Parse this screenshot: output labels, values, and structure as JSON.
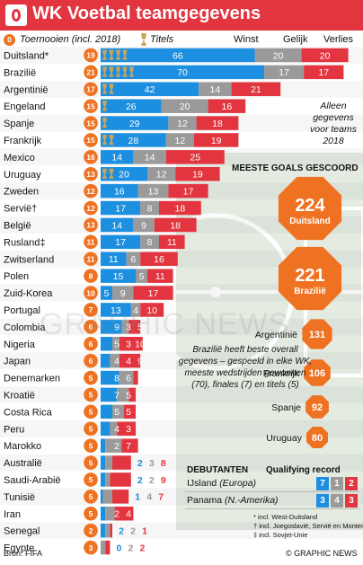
{
  "title": "WK Voetbal teamgegevens",
  "legend": {
    "tournaments_badge": "0",
    "tournaments": "Toernooien (incl. 2018)",
    "titles": "Titels",
    "wins": "Winst",
    "draws": "Gelijk",
    "losses": "Verlies"
  },
  "note_2018": "Alleen gegevens voor teams 2018",
  "goals_heading": "MEESTE GOALS GESCOORD",
  "goals": [
    {
      "value": "224",
      "team": "Duitsland"
    },
    {
      "value": "221",
      "team": "Brazilië"
    },
    {
      "value": "131",
      "team": "Argentinië"
    },
    {
      "value": "106",
      "team": "Frankrijk"
    },
    {
      "value": "92",
      "team": "Spanje"
    },
    {
      "value": "80",
      "team": "Uruguay"
    }
  ],
  "brazil_note": "Brazilië heeft beste overall gegevens – gespeeld in elke WK, meeste wedstrijden gewonnen (70), finales (7) en titels (5)",
  "debutants": {
    "heading": "DEBUTANTEN",
    "qualifying": "Qualifying record",
    "rows": [
      {
        "team": "IJsland",
        "region": "(Europa)",
        "w": "7",
        "d": "1",
        "l": "2"
      },
      {
        "team": "Panama",
        "region": "(N.-Amerika)",
        "w": "3",
        "d": "4",
        "l": "3"
      }
    ]
  },
  "footnotes": [
    "* incl. West-Duitsland",
    "† incl. Joegoslavië, Servië en Montenegro",
    "‡ incl. Sovjet-Unie"
  ],
  "watermark": "GRAPHIC NEWS",
  "source": "Bron: FIFA",
  "credit": "© GRAPHIC NEWS",
  "colors": {
    "wins": "#1c8fe0",
    "draws": "#9a9a9a",
    "losses": "#e23540",
    "badge": "#ef7222",
    "trophy": "#c9a45a",
    "title_bar": "#e23540"
  },
  "chart_data": {
    "type": "bar",
    "stacked": true,
    "orientation": "horizontal",
    "categories": [
      "Duitsland*",
      "Brazilië",
      "Argentinië",
      "Engeland",
      "Spanje",
      "Frankrijk",
      "Mexico",
      "Uruguay",
      "Zweden",
      "Servië†",
      "België",
      "Rusland‡",
      "Zwitserland",
      "Polen",
      "Zuid-Korea",
      "Portugal",
      "Colombia",
      "Nigeria",
      "Japan",
      "Denemarken",
      "Kroatië",
      "Costa Rica",
      "Peru",
      "Marokko",
      "Australië",
      "Saudi-Arabië",
      "Tunisië",
      "Iran",
      "Senegal",
      "Egypte"
    ],
    "tournaments": [
      19,
      21,
      17,
      15,
      15,
      15,
      16,
      13,
      12,
      12,
      13,
      11,
      11,
      8,
      10,
      7,
      6,
      6,
      6,
      5,
      5,
      5,
      5,
      5,
      5,
      5,
      5,
      5,
      2,
      3
    ],
    "titles": [
      4,
      5,
      2,
      1,
      1,
      2,
      0,
      2,
      0,
      0,
      0,
      0,
      0,
      0,
      0,
      0,
      0,
      0,
      0,
      0,
      0,
      0,
      0,
      0,
      0,
      0,
      0,
      0,
      0,
      0
    ],
    "series": [
      {
        "name": "Winst",
        "values": [
          66,
          70,
          42,
          26,
          29,
          28,
          14,
          20,
          16,
          17,
          14,
          17,
          11,
          15,
          5,
          13,
          9,
          5,
          4,
          8,
          7,
          5,
          4,
          2,
          2,
          2,
          1,
          2,
          2,
          0
        ]
      },
      {
        "name": "Gelijk",
        "values": [
          20,
          17,
          14,
          20,
          12,
          12,
          14,
          12,
          13,
          8,
          9,
          8,
          6,
          5,
          9,
          4,
          3,
          3,
          4,
          6,
          5,
          5,
          3,
          7,
          3,
          2,
          4,
          4,
          2,
          2
        ]
      },
      {
        "name": "Verlies",
        "values": [
          20,
          17,
          21,
          16,
          18,
          19,
          25,
          19,
          17,
          18,
          18,
          11,
          16,
          11,
          17,
          10,
          5,
          10,
          9,
          2,
          3,
          5,
          8,
          7,
          8,
          9,
          7,
          8,
          1,
          2
        ]
      }
    ],
    "xlim": [
      0,
      110
    ]
  }
}
